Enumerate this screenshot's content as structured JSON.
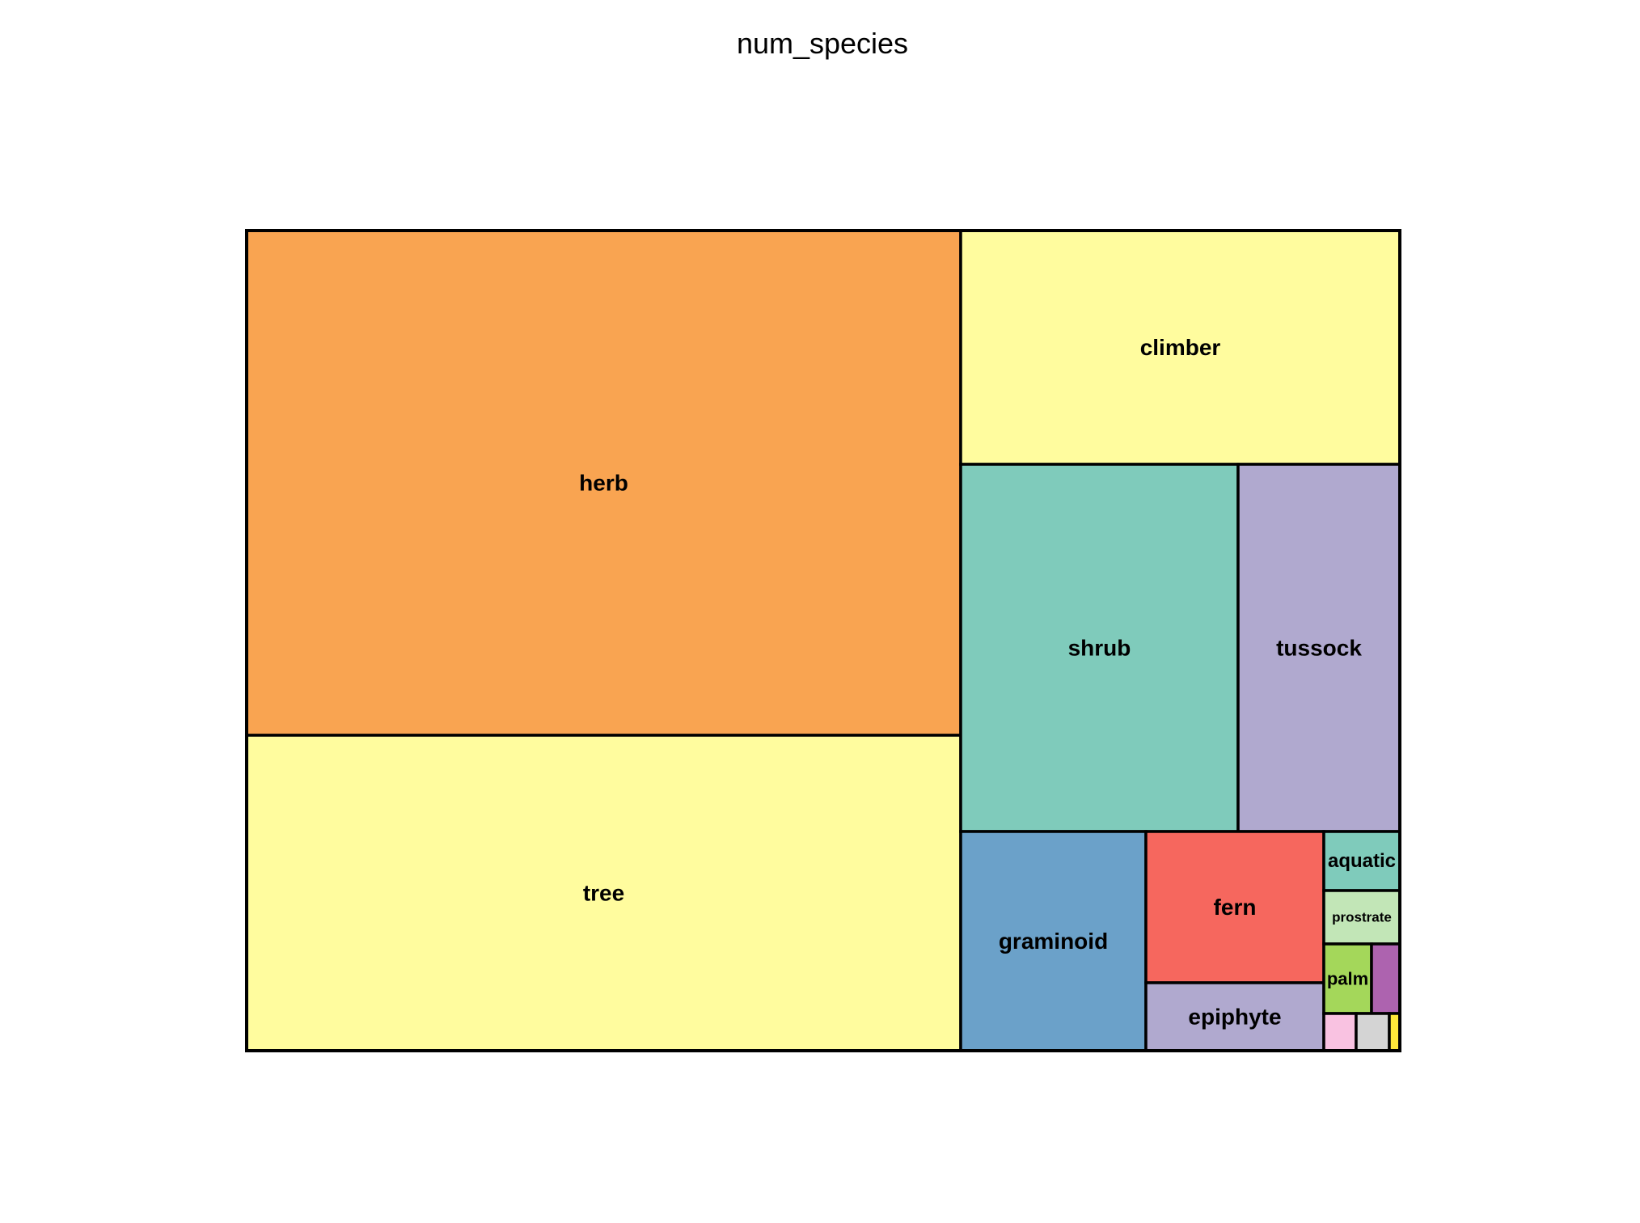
{
  "chart_data": {
    "type": "treemap",
    "title": "num_species",
    "tiles": [
      {
        "label": "herb",
        "color": "#F9A451",
        "value": 0.3816
      },
      {
        "label": "tree",
        "color": "#FFFC9E",
        "value": 0.2385
      },
      {
        "label": "climber",
        "color": "#FFFC9E",
        "value": 0.1083
      },
      {
        "label": "shrub",
        "color": "#7FCBBB",
        "value": 0.1073
      },
      {
        "label": "tussock",
        "color": "#B0A9CF",
        "value": 0.0633
      },
      {
        "label": "graminoid",
        "color": "#6BA1C9",
        "value": 0.0432
      },
      {
        "label": "fern",
        "color": "#F6675E",
        "value": 0.0284
      },
      {
        "label": "epiphyte",
        "color": "#B0A9CF",
        "value": 0.0129
      },
      {
        "label": "aquatic",
        "color": "#7FCBBB",
        "value": 0.0048
      },
      {
        "label": "prostrate",
        "color": "#C2E6B7",
        "value": 0.0042
      },
      {
        "label": "palm",
        "color": "#A4D75A",
        "value": 0.0035
      },
      {
        "label": "",
        "color": "#AD63AF",
        "value": 0.002
      },
      {
        "label": "",
        "color": "#F9C2E1",
        "value": 0.0012
      },
      {
        "label": "",
        "color": "#D4D4D4",
        "value": 0.0012
      },
      {
        "label": "",
        "color": "#FFE83A",
        "value": 0.0004
      }
    ]
  }
}
